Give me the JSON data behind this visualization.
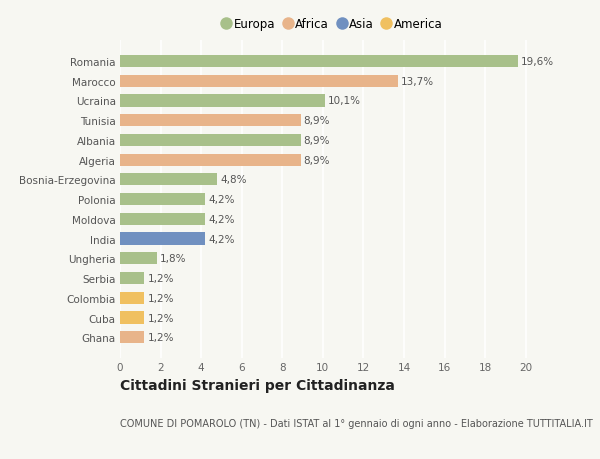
{
  "categories": [
    "Romania",
    "Marocco",
    "Ucraina",
    "Tunisia",
    "Albania",
    "Algeria",
    "Bosnia-Erzegovina",
    "Polonia",
    "Moldova",
    "India",
    "Ungheria",
    "Serbia",
    "Colombia",
    "Cuba",
    "Ghana"
  ],
  "values": [
    19.6,
    13.7,
    10.1,
    8.9,
    8.9,
    8.9,
    4.8,
    4.2,
    4.2,
    4.2,
    1.8,
    1.2,
    1.2,
    1.2,
    1.2
  ],
  "continents": [
    "Europa",
    "Africa",
    "Europa",
    "Africa",
    "Europa",
    "Africa",
    "Europa",
    "Europa",
    "Europa",
    "Asia",
    "Europa",
    "Europa",
    "America",
    "America",
    "Africa"
  ],
  "continent_colors": {
    "Europa": "#a8c08a",
    "Africa": "#e8b48a",
    "Asia": "#7090c0",
    "America": "#f0c060"
  },
  "legend_order": [
    "Europa",
    "Africa",
    "Asia",
    "America"
  ],
  "labels": [
    "19,6%",
    "13,7%",
    "10,1%",
    "8,9%",
    "8,9%",
    "8,9%",
    "4,8%",
    "4,2%",
    "4,2%",
    "4,2%",
    "1,8%",
    "1,2%",
    "1,2%",
    "1,2%",
    "1,2%"
  ],
  "xlim": [
    0,
    21
  ],
  "xticks": [
    0,
    2,
    4,
    6,
    8,
    10,
    12,
    14,
    16,
    18,
    20
  ],
  "title": "Cittadini Stranieri per Cittadinanza",
  "subtitle": "COMUNE DI POMAROLO (TN) - Dati ISTAT al 1° gennaio di ogni anno - Elaborazione TUTTITALIA.IT",
  "background_color": "#f7f7f2",
  "bar_height": 0.62,
  "grid_color": "#ffffff",
  "label_fontsize": 7.5,
  "ytick_fontsize": 7.5,
  "xtick_fontsize": 7.5,
  "title_fontsize": 10,
  "subtitle_fontsize": 7,
  "legend_fontsize": 8.5
}
